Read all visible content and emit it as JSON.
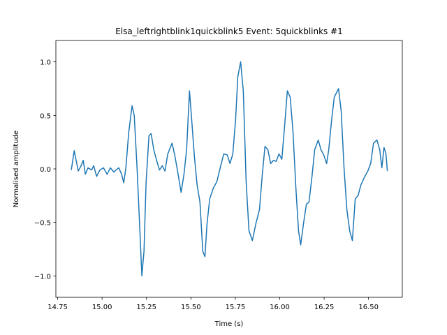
{
  "chart_data": {
    "type": "line",
    "title": "Elsa_leftrightblink1quickblink5 Event: 5quickblinks #1",
    "xlabel": "Time (s)",
    "ylabel": "Normalised amplitude",
    "color": "#1f77b4",
    "x": [
      14.827,
      14.843,
      14.854,
      14.866,
      14.882,
      14.894,
      14.906,
      14.921,
      14.941,
      14.953,
      14.969,
      14.988,
      15.008,
      15.028,
      15.047,
      15.067,
      15.079,
      15.094,
      15.11,
      15.122,
      15.134,
      15.15,
      15.169,
      15.181,
      15.197,
      15.213,
      15.224,
      15.236,
      15.248,
      15.264,
      15.276,
      15.291,
      15.307,
      15.323,
      15.339,
      15.354,
      15.37,
      15.394,
      15.409,
      15.425,
      15.445,
      15.461,
      15.476,
      15.492,
      15.504,
      15.52,
      15.535,
      15.551,
      15.567,
      15.579,
      15.591,
      15.606,
      15.626,
      15.646,
      15.665,
      15.685,
      15.705,
      15.72,
      15.736,
      15.752,
      15.764,
      15.78,
      15.795,
      15.811,
      15.827,
      15.846,
      15.866,
      15.886,
      15.902,
      15.917,
      15.933,
      15.949,
      15.965,
      15.98,
      15.996,
      16.012,
      16.028,
      16.043,
      16.059,
      16.075,
      16.091,
      16.106,
      16.118,
      16.134,
      16.15,
      16.165,
      16.181,
      16.197,
      16.217,
      16.232,
      16.248,
      16.264,
      16.276,
      16.291,
      16.307,
      16.331,
      16.346,
      16.362,
      16.378,
      16.394,
      16.409,
      16.425,
      16.441,
      16.457,
      16.476,
      16.496,
      16.512,
      16.528,
      16.547,
      16.563,
      16.575,
      16.587,
      16.598,
      16.606
    ],
    "values": [
      -0.01,
      0.17,
      0.08,
      -0.02,
      0.03,
      0.08,
      -0.05,
      0.01,
      -0.01,
      0.03,
      -0.07,
      -0.01,
      0.01,
      -0.05,
      0.01,
      -0.03,
      -0.01,
      0.01,
      -0.05,
      -0.13,
      0.01,
      0.34,
      0.59,
      0.5,
      0.01,
      -0.58,
      -1.0,
      -0.77,
      -0.12,
      0.31,
      0.33,
      0.18,
      0.08,
      -0.01,
      0.03,
      -0.02,
      0.14,
      0.24,
      0.13,
      -0.02,
      -0.22,
      -0.05,
      0.18,
      0.73,
      0.47,
      0.11,
      -0.15,
      -0.31,
      -0.77,
      -0.82,
      -0.51,
      -0.28,
      -0.18,
      -0.12,
      0.01,
      0.14,
      0.13,
      0.05,
      0.14,
      0.47,
      0.86,
      1.0,
      0.73,
      -0.12,
      -0.58,
      -0.67,
      -0.51,
      -0.38,
      -0.05,
      0.21,
      0.18,
      0.05,
      0.08,
      0.07,
      0.14,
      0.09,
      0.41,
      0.73,
      0.67,
      0.34,
      -0.18,
      -0.58,
      -0.71,
      -0.51,
      -0.33,
      -0.31,
      -0.08,
      0.18,
      0.27,
      0.18,
      0.13,
      0.05,
      0.18,
      0.44,
      0.67,
      0.75,
      0.54,
      0.01,
      -0.38,
      -0.58,
      -0.67,
      -0.28,
      -0.25,
      -0.15,
      -0.08,
      -0.02,
      0.05,
      0.24,
      0.27,
      0.18,
      0.01,
      0.2,
      0.14,
      -0.02
    ],
    "xlim": [
      14.74,
      16.69
    ],
    "ylim": [
      -1.2,
      1.2
    ],
    "xticks": [
      {
        "value": 14.75,
        "label": "14.75"
      },
      {
        "value": 15,
        "label": "15.00"
      },
      {
        "value": 15.25,
        "label": "15.25"
      },
      {
        "value": 15.5,
        "label": "15.50"
      },
      {
        "value": 15.75,
        "label": "15.75"
      },
      {
        "value": 16,
        "label": "16.00"
      },
      {
        "value": 16.25,
        "label": "16.25"
      },
      {
        "value": 16.5,
        "label": "16.50"
      }
    ],
    "yticks": [
      {
        "value": -1,
        "label": "−1.0"
      },
      {
        "value": -0.5,
        "label": "−0.5"
      },
      {
        "value": 0,
        "label": "0.0"
      },
      {
        "value": 0.5,
        "label": "0.5"
      },
      {
        "value": 1,
        "label": "1.0"
      }
    ]
  }
}
